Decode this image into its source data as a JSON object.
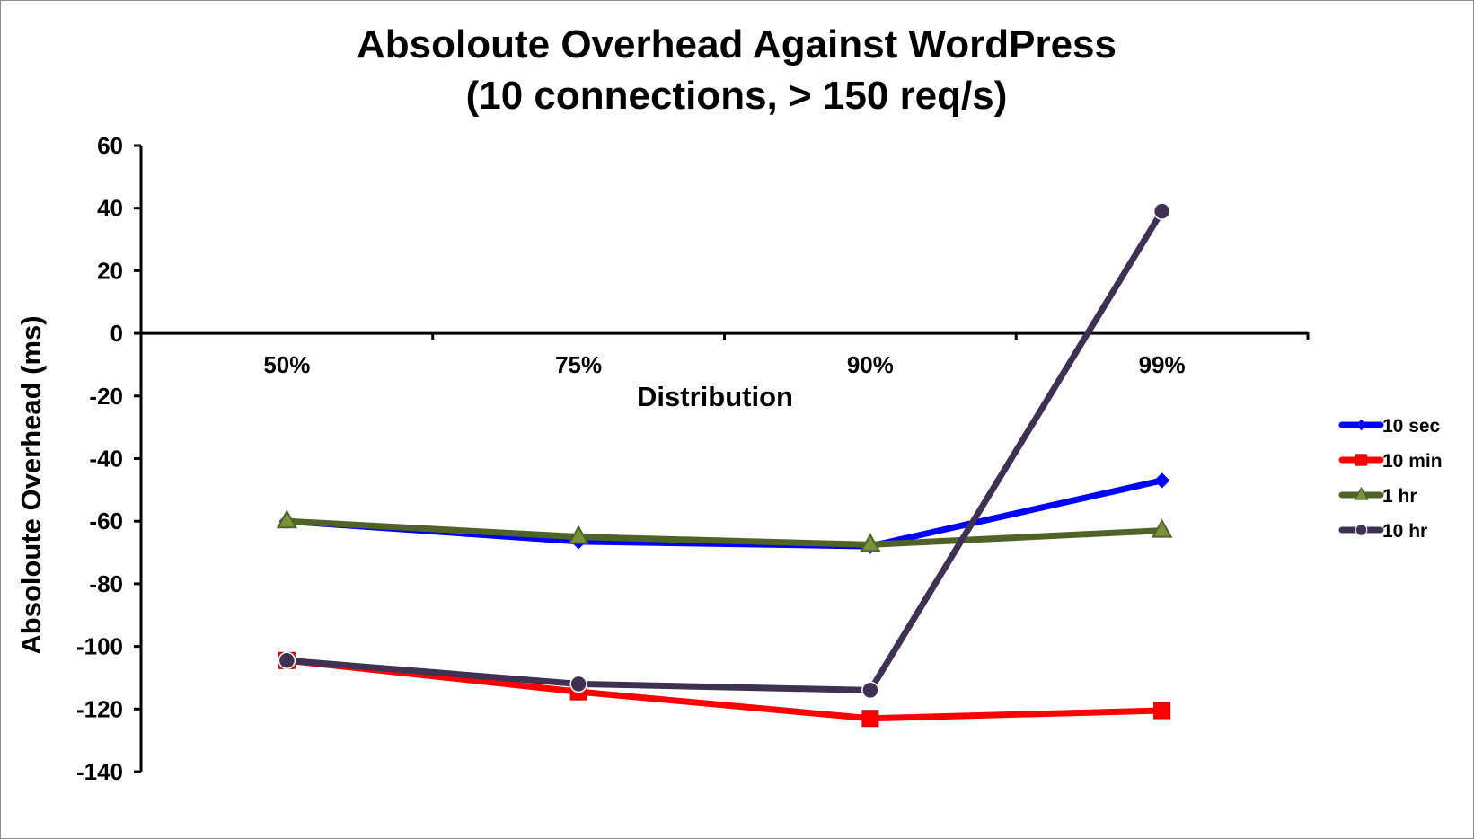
{
  "chart_data": {
    "type": "line",
    "title_lines": [
      "Absoloute Overhead Against WordPress",
      "(10 connections, > 150 req/s)"
    ],
    "xlabel": "Distribution",
    "ylabel": "Absoloute Overhead (ms)",
    "categories": [
      "50%",
      "75%",
      "90%",
      "99%"
    ],
    "ylim": [
      -140,
      60
    ],
    "yticks": [
      60,
      40,
      20,
      0,
      -20,
      -40,
      -60,
      -80,
      -100,
      -120,
      -140
    ],
    "grid": false,
    "legend_position": "right",
    "series": [
      {
        "name": "10 sec",
        "color": "#0000ff",
        "marker": "diamond",
        "values": [
          -60,
          -66.5,
          -68,
          -47
        ]
      },
      {
        "name": "10 min",
        "color": "#ff0000",
        "marker": "square",
        "values": [
          -104.5,
          -114.5,
          -123,
          -120.5
        ]
      },
      {
        "name": "1 hr",
        "color": "#4f6228",
        "marker_fill": "#77933c",
        "marker": "triangle",
        "values": [
          -60,
          -65,
          -67.5,
          -63
        ]
      },
      {
        "name": "10 hr",
        "color": "#3f3151",
        "marker_fill": "#403152",
        "marker": "circle",
        "values": [
          -104.5,
          -112,
          -114,
          39
        ]
      }
    ]
  }
}
